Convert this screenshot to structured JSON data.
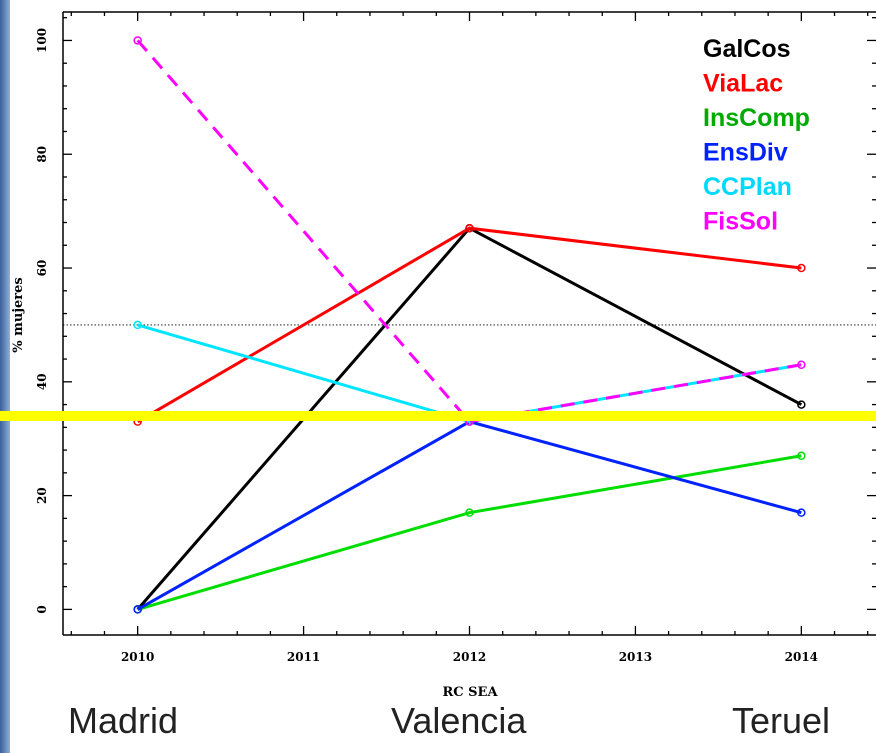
{
  "chart_data": {
    "type": "line",
    "x": [
      2010,
      2012,
      2014
    ],
    "xticks": [
      "2010",
      "2011",
      "2012",
      "2013",
      "2014"
    ],
    "xlim": [
      2009.55,
      2014.45
    ],
    "ylim": [
      -4.5,
      105
    ],
    "yticks": [
      "0",
      "20",
      "40",
      "60",
      "80",
      "100"
    ],
    "xlabel": "RC SEA",
    "ylabel": "% mujeres",
    "reference_line": 50,
    "highlight_line": 34,
    "series": [
      {
        "name": "GalCos",
        "color": "#000000",
        "dash": false,
        "values": [
          0,
          67,
          36
        ]
      },
      {
        "name": "ViaLac",
        "color": "#ff0000",
        "dash": false,
        "values": [
          33,
          67,
          60
        ]
      },
      {
        "name": "InsComp",
        "color": "#00dd00",
        "dash": false,
        "values": [
          0,
          17,
          27
        ]
      },
      {
        "name": "EnsDiv",
        "color": "#0022ff",
        "dash": false,
        "values": [
          0,
          33,
          17
        ]
      },
      {
        "name": "CCPlan",
        "color": "#00e5ff",
        "dash": false,
        "values": [
          50,
          33,
          43
        ]
      },
      {
        "name": "FisSol",
        "color": "#ff00ff",
        "dash": true,
        "values": [
          100,
          33,
          43
        ]
      }
    ],
    "legend_position": "top-right",
    "legend_colors": [
      "#000000",
      "#ff0000",
      "#00aa00",
      "#0022ff",
      "#00d8ff",
      "#ff00ff"
    ]
  },
  "cities": [
    "Madrid",
    "Valencia",
    "Teruel"
  ]
}
